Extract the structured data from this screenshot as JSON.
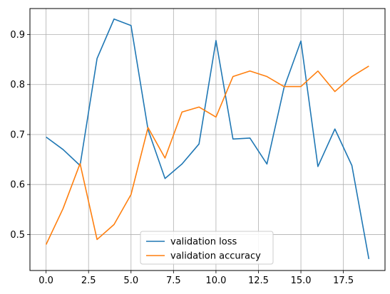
{
  "chart_data": {
    "type": "line",
    "title": "",
    "xlabel": "",
    "ylabel": "",
    "xlim": [
      -0.95,
      19.95
    ],
    "ylim": [
      0.428,
      0.952
    ],
    "grid": true,
    "legend_position": "lower-center",
    "x": [
      0,
      1,
      2,
      3,
      4,
      5,
      6,
      7,
      8,
      9,
      10,
      11,
      12,
      13,
      14,
      15,
      16,
      17,
      18,
      19
    ],
    "x_ticks": [
      0.0,
      2.5,
      5.0,
      7.5,
      10.0,
      12.5,
      15.0,
      17.5
    ],
    "x_tick_labels": [
      "0.0",
      "2.5",
      "5.0",
      "7.5",
      "10.0",
      "12.5",
      "15.0",
      "17.5"
    ],
    "y_ticks": [
      0.5,
      0.6,
      0.7,
      0.8,
      0.9
    ],
    "y_tick_labels": [
      "0.5",
      "0.6",
      "0.7",
      "0.8",
      "0.9"
    ],
    "series": [
      {
        "name": "validation loss",
        "color": "#1f77b4",
        "values": [
          0.695,
          0.67,
          0.638,
          0.852,
          0.931,
          0.918,
          0.71,
          0.612,
          0.641,
          0.681,
          0.888,
          0.691,
          0.693,
          0.641,
          0.793,
          0.887,
          0.636,
          0.711,
          0.638,
          0.451
        ]
      },
      {
        "name": "validation accuracy",
        "color": "#ff7f0e",
        "values": [
          0.48,
          0.552,
          0.642,
          0.49,
          0.52,
          0.58,
          0.714,
          0.653,
          0.745,
          0.755,
          0.735,
          0.816,
          0.827,
          0.816,
          0.796,
          0.796,
          0.827,
          0.786,
          0.816,
          0.837
        ]
      }
    ]
  }
}
